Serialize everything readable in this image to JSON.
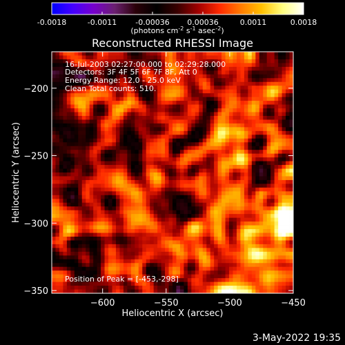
{
  "colorbar": {
    "tick_labels": [
      "-0.0018",
      "-0.0011",
      "-0.00036",
      "0.00036",
      "0.0011",
      "0.0018"
    ],
    "units": {
      "prefix": "(photons cm",
      "exp1": "-2",
      "mid": " s",
      "exp2": "-1",
      "mid2": " asec",
      "exp3": "-2",
      "suffix": ")"
    },
    "colors": [
      "#0000ff",
      "#4400ff",
      "#7700cc",
      "#6a2070",
      "#2a0008",
      "#000000",
      "#3a0000",
      "#a30000",
      "#ff2a00",
      "#ff7a00",
      "#ffc000",
      "#ffff80",
      "#ffffff"
    ]
  },
  "info_lines": {
    "time": "16-Jul-2003 02:27:00.000 to 02:29:28.000",
    "detectors": "Detectors: 3F 4F 5F 6F 7F 8F, Att 0",
    "energy": "Energy Range: 12.0 - 25.0 keV",
    "clean": "Clean     Total counts: 510.",
    "peak": "Position of Peak = [-453,-298]"
  },
  "footer_date": "3-May-2022 19:35",
  "chart_data": {
    "type": "heatmap",
    "title": "Reconstructed RHESSI Image",
    "xlabel": "Heliocentric X (arcsec)",
    "ylabel": "Heliocentric Y (arcsec)",
    "xlim": [
      -640,
      -450
    ],
    "ylim": [
      -352,
      -173
    ],
    "x_ticks": [
      -600,
      -550,
      -500,
      -450
    ],
    "x_tick_labels": [
      "−600",
      "−550",
      "−500",
      "−450"
    ],
    "y_ticks": [
      -200,
      -250,
      -300,
      -350
    ],
    "y_tick_labels": [
      "−200",
      "−250",
      "−300",
      "−350"
    ],
    "value_range": [
      -0.0018,
      0.0018
    ],
    "peak_position": [
      -453,
      -298
    ]
  }
}
